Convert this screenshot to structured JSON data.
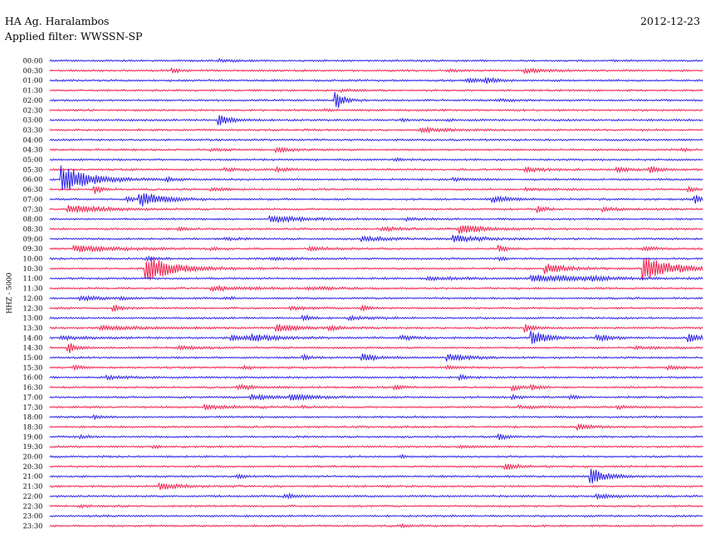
{
  "header": {
    "station": "HA Ag. Haralambos",
    "filter_text": "Applied filter: WWSSN-SP",
    "date": "2012-12-23"
  },
  "colors": {
    "trace_blue": "#1a10e6",
    "trace_red": "#f01040",
    "background": "#ffffff",
    "text": "#000000"
  },
  "chart_data": {
    "type": "line",
    "title": "HA Ag. Haralambos",
    "subtitle": "Applied filter: WWSSN-SP",
    "date": "2012-12-23",
    "ylabel": "HHZ - 5000",
    "xlabel": "",
    "trace_colors": [
      "#1a10e6",
      "#f01040"
    ],
    "row_minutes": 30,
    "rows": [
      {
        "label": "00:00",
        "events": [
          {
            "t": 0.26,
            "a": 0.3,
            "d": 0.02
          }
        ]
      },
      {
        "label": "00:30",
        "events": [
          {
            "t": 0.19,
            "a": 0.55,
            "d": 0.01
          },
          {
            "t": 0.61,
            "a": 0.2,
            "d": 0.02
          },
          {
            "t": 0.73,
            "a": 0.45,
            "d": 0.03
          }
        ]
      },
      {
        "label": "01:00",
        "events": [
          {
            "t": 0.64,
            "a": 0.35,
            "d": 0.04
          },
          {
            "t": 0.67,
            "a": 0.6,
            "d": 0.01
          }
        ]
      },
      {
        "label": "01:30",
        "events": [
          {
            "t": 0.45,
            "a": 0.2,
            "d": 0.02
          }
        ]
      },
      {
        "label": "02:00",
        "events": [
          {
            "t": 0.44,
            "a": 2.6,
            "d": 0.01
          },
          {
            "t": 0.69,
            "a": 0.2,
            "d": 0.03
          }
        ]
      },
      {
        "label": "02:30",
        "events": [
          {
            "t": 0.42,
            "a": 0.2,
            "d": 0.02
          }
        ]
      },
      {
        "label": "03:00",
        "events": [
          {
            "t": 0.26,
            "a": 1.3,
            "d": 0.02
          },
          {
            "t": 0.54,
            "a": 0.3,
            "d": 0.01
          },
          {
            "t": 0.61,
            "a": 0.25,
            "d": 0.01
          }
        ]
      },
      {
        "label": "03:30",
        "events": [
          {
            "t": 0.57,
            "a": 0.5,
            "d": 0.04
          }
        ]
      },
      {
        "label": "04:00",
        "events": []
      },
      {
        "label": "04:30",
        "events": [
          {
            "t": 0.25,
            "a": 0.25,
            "d": 0.02
          },
          {
            "t": 0.35,
            "a": 0.5,
            "d": 0.02
          },
          {
            "t": 0.97,
            "a": 0.3,
            "d": 0.01
          }
        ]
      },
      {
        "label": "05:00",
        "events": [
          {
            "t": 0.53,
            "a": 0.35,
            "d": 0.01
          }
        ]
      },
      {
        "label": "05:30",
        "events": [
          {
            "t": 0.27,
            "a": 0.3,
            "d": 0.02
          },
          {
            "t": 0.35,
            "a": 0.45,
            "d": 0.02
          },
          {
            "t": 0.73,
            "a": 0.45,
            "d": 0.03
          },
          {
            "t": 0.87,
            "a": 0.55,
            "d": 0.02
          },
          {
            "t": 0.92,
            "a": 0.6,
            "d": 0.02
          }
        ]
      },
      {
        "label": "06:00",
        "events": [
          {
            "t": 0.02,
            "a": 3.5,
            "d": 0.04
          },
          {
            "t": 0.18,
            "a": 0.5,
            "d": 0.01
          },
          {
            "t": 0.62,
            "a": 0.3,
            "d": 0.03
          }
        ]
      },
      {
        "label": "06:30",
        "events": [
          {
            "t": 0.07,
            "a": 1.0,
            "d": 0.01
          },
          {
            "t": 0.25,
            "a": 0.35,
            "d": 0.02
          },
          {
            "t": 0.73,
            "a": 0.3,
            "d": 0.03
          },
          {
            "t": 0.98,
            "a": 0.6,
            "d": 0.01
          }
        ]
      },
      {
        "label": "07:00",
        "events": [
          {
            "t": 0.14,
            "a": 2.0,
            "d": 0.03
          },
          {
            "t": 0.12,
            "a": 0.5,
            "d": 0.01
          },
          {
            "t": 0.68,
            "a": 0.7,
            "d": 0.03
          },
          {
            "t": 0.99,
            "a": 1.0,
            "d": 0.01
          }
        ]
      },
      {
        "label": "07:30",
        "events": [
          {
            "t": 0.03,
            "a": 1.0,
            "d": 0.05
          },
          {
            "t": 0.75,
            "a": 0.7,
            "d": 0.01
          },
          {
            "t": 0.85,
            "a": 0.4,
            "d": 0.03
          }
        ]
      },
      {
        "label": "08:00",
        "events": [
          {
            "t": 0.34,
            "a": 1.0,
            "d": 0.04
          },
          {
            "t": 0.55,
            "a": 0.3,
            "d": 0.03
          }
        ]
      },
      {
        "label": "08:30",
        "events": [
          {
            "t": 0.2,
            "a": 0.3,
            "d": 0.01
          },
          {
            "t": 0.51,
            "a": 0.4,
            "d": 0.04
          },
          {
            "t": 0.63,
            "a": 1.2,
            "d": 0.03
          }
        ]
      },
      {
        "label": "09:00",
        "events": [
          {
            "t": 0.27,
            "a": 0.3,
            "d": 0.02
          },
          {
            "t": 0.48,
            "a": 0.55,
            "d": 0.04
          },
          {
            "t": 0.62,
            "a": 0.8,
            "d": 0.04
          }
        ]
      },
      {
        "label": "09:30",
        "events": [
          {
            "t": 0.04,
            "a": 0.8,
            "d": 0.06
          },
          {
            "t": 0.25,
            "a": 0.35,
            "d": 0.01
          },
          {
            "t": 0.4,
            "a": 0.35,
            "d": 0.03
          },
          {
            "t": 0.69,
            "a": 0.9,
            "d": 0.01
          },
          {
            "t": 0.91,
            "a": 0.4,
            "d": 0.02
          }
        ]
      },
      {
        "label": "10:00",
        "events": [
          {
            "t": 0.15,
            "a": 0.3,
            "d": 0.02
          },
          {
            "t": 0.34,
            "a": 0.3,
            "d": 0.03
          },
          {
            "t": 0.69,
            "a": 0.35,
            "d": 0.01
          }
        ]
      },
      {
        "label": "10:30",
        "events": [
          {
            "t": 0.15,
            "a": 3.3,
            "d": 0.04
          },
          {
            "t": 0.76,
            "a": 1.2,
            "d": 0.03
          },
          {
            "t": 0.91,
            "a": 3.3,
            "d": 0.04
          }
        ]
      },
      {
        "label": "11:00",
        "events": [
          {
            "t": 0.58,
            "a": 0.3,
            "d": 0.06
          },
          {
            "t": 0.74,
            "a": 0.9,
            "d": 0.08
          },
          {
            "t": 0.83,
            "a": 0.35,
            "d": 0.02
          }
        ]
      },
      {
        "label": "11:30",
        "events": [
          {
            "t": 0.25,
            "a": 0.45,
            "d": 0.06
          },
          {
            "t": 0.4,
            "a": 0.3,
            "d": 0.03
          }
        ]
      },
      {
        "label": "12:00",
        "events": [
          {
            "t": 0.05,
            "a": 0.5,
            "d": 0.03
          },
          {
            "t": 0.11,
            "a": 0.5,
            "d": 0.01
          },
          {
            "t": 0.27,
            "a": 0.3,
            "d": 0.01
          }
        ]
      },
      {
        "label": "12:30",
        "events": [
          {
            "t": 0.1,
            "a": 0.8,
            "d": 0.01
          },
          {
            "t": 0.37,
            "a": 0.35,
            "d": 0.03
          },
          {
            "t": 0.48,
            "a": 0.7,
            "d": 0.01
          }
        ]
      },
      {
        "label": "13:00",
        "events": [
          {
            "t": 0.39,
            "a": 0.8,
            "d": 0.01
          },
          {
            "t": 0.46,
            "a": 0.4,
            "d": 0.03
          }
        ]
      },
      {
        "label": "13:30",
        "events": [
          {
            "t": 0.08,
            "a": 0.5,
            "d": 0.06
          },
          {
            "t": 0.35,
            "a": 0.9,
            "d": 0.03
          },
          {
            "t": 0.43,
            "a": 0.4,
            "d": 0.02
          },
          {
            "t": 0.73,
            "a": 1.0,
            "d": 0.01
          }
        ]
      },
      {
        "label": "14:00",
        "events": [
          {
            "t": 0.02,
            "a": 0.4,
            "d": 0.05
          },
          {
            "t": 0.28,
            "a": 0.8,
            "d": 0.02
          },
          {
            "t": 0.31,
            "a": 0.8,
            "d": 0.04
          },
          {
            "t": 0.54,
            "a": 0.5,
            "d": 0.02
          },
          {
            "t": 0.74,
            "a": 2.0,
            "d": 0.02
          },
          {
            "t": 0.84,
            "a": 0.8,
            "d": 0.02
          },
          {
            "t": 0.98,
            "a": 1.0,
            "d": 0.02
          }
        ]
      },
      {
        "label": "14:30",
        "events": [
          {
            "t": 0.03,
            "a": 1.3,
            "d": 0.01
          },
          {
            "t": 0.2,
            "a": 0.3,
            "d": 0.04
          },
          {
            "t": 0.9,
            "a": 0.3,
            "d": 0.03
          }
        ]
      },
      {
        "label": "15:00",
        "events": [
          {
            "t": 0.39,
            "a": 0.6,
            "d": 0.01
          },
          {
            "t": 0.48,
            "a": 0.9,
            "d": 0.02
          },
          {
            "t": 0.61,
            "a": 0.9,
            "d": 0.03
          }
        ]
      },
      {
        "label": "15:30",
        "events": [
          {
            "t": 0.04,
            "a": 0.5,
            "d": 0.01
          },
          {
            "t": 0.3,
            "a": 0.4,
            "d": 0.01
          },
          {
            "t": 0.61,
            "a": 0.3,
            "d": 0.02
          },
          {
            "t": 0.95,
            "a": 0.4,
            "d": 0.02
          }
        ]
      },
      {
        "label": "16:00",
        "events": [
          {
            "t": 0.09,
            "a": 0.35,
            "d": 0.03
          },
          {
            "t": 0.63,
            "a": 0.5,
            "d": 0.01
          }
        ]
      },
      {
        "label": "16:30",
        "events": [
          {
            "t": 0.29,
            "a": 0.5,
            "d": 0.03
          },
          {
            "t": 0.53,
            "a": 0.6,
            "d": 0.01
          },
          {
            "t": 0.71,
            "a": 0.7,
            "d": 0.01
          },
          {
            "t": 0.74,
            "a": 0.7,
            "d": 0.01
          }
        ]
      },
      {
        "label": "17:00",
        "events": [
          {
            "t": 0.31,
            "a": 0.6,
            "d": 0.04
          },
          {
            "t": 0.37,
            "a": 0.7,
            "d": 0.03
          },
          {
            "t": 0.71,
            "a": 0.5,
            "d": 0.01
          },
          {
            "t": 0.8,
            "a": 0.5,
            "d": 0.01
          }
        ]
      },
      {
        "label": "17:30",
        "events": [
          {
            "t": 0.24,
            "a": 0.5,
            "d": 0.04
          },
          {
            "t": 0.39,
            "a": 0.3,
            "d": 0.01
          },
          {
            "t": 0.72,
            "a": 0.3,
            "d": 0.04
          },
          {
            "t": 0.87,
            "a": 0.35,
            "d": 0.02
          }
        ]
      },
      {
        "label": "18:00",
        "events": [
          {
            "t": 0.07,
            "a": 0.4,
            "d": 0.01
          }
        ]
      },
      {
        "label": "18:30",
        "events": [
          {
            "t": 0.81,
            "a": 0.6,
            "d": 0.02
          }
        ]
      },
      {
        "label": "19:00",
        "events": [
          {
            "t": 0.05,
            "a": 0.3,
            "d": 0.01
          },
          {
            "t": 0.69,
            "a": 0.7,
            "d": 0.01
          }
        ]
      },
      {
        "label": "19:30",
        "events": [
          {
            "t": 0.16,
            "a": 0.3,
            "d": 0.01
          },
          {
            "t": 0.63,
            "a": 0.3,
            "d": 0.02
          }
        ]
      },
      {
        "label": "20:00",
        "events": [
          {
            "t": 0.54,
            "a": 0.25,
            "d": 0.01
          }
        ]
      },
      {
        "label": "20:30",
        "events": [
          {
            "t": 0.7,
            "a": 0.7,
            "d": 0.02
          }
        ]
      },
      {
        "label": "21:00",
        "events": [
          {
            "t": 0.29,
            "a": 0.4,
            "d": 0.01
          },
          {
            "t": 0.83,
            "a": 2.5,
            "d": 0.02
          }
        ]
      },
      {
        "label": "21:30",
        "events": [
          {
            "t": 0.17,
            "a": 0.8,
            "d": 0.03
          }
        ]
      },
      {
        "label": "22:00",
        "events": [
          {
            "t": 0.36,
            "a": 0.5,
            "d": 0.02
          },
          {
            "t": 0.84,
            "a": 0.5,
            "d": 0.03
          }
        ]
      },
      {
        "label": "22:30",
        "events": [
          {
            "t": 0.05,
            "a": 0.25,
            "d": 0.01
          }
        ]
      },
      {
        "label": "23:00",
        "events": []
      },
      {
        "label": "23:30",
        "events": [
          {
            "t": 0.54,
            "a": 0.35,
            "d": 0.01
          }
        ]
      }
    ]
  }
}
